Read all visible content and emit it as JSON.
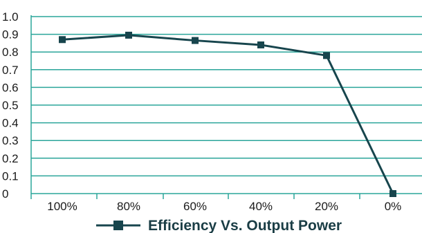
{
  "chart_data": {
    "type": "line",
    "title": "",
    "xlabel": "",
    "ylabel": "",
    "categories": [
      "100%",
      "80%",
      "60%",
      "40%",
      "20%",
      "0%"
    ],
    "series": [
      {
        "name": "Efficiency Vs. Output Power",
        "values": [
          0.87,
          0.895,
          0.865,
          0.84,
          0.78,
          0.0
        ],
        "color": "#17454d"
      }
    ],
    "ylim": [
      0,
      1.0
    ],
    "y_ticks": [
      "0",
      "0.1",
      "0.2",
      "0.3",
      "0.4",
      "0.5",
      "0.6",
      "0.7",
      "0.8",
      "0.9",
      "1.0"
    ],
    "grid": true,
    "grid_color": "#2aa59a",
    "legend_position": "bottom-center",
    "marker": "square"
  }
}
